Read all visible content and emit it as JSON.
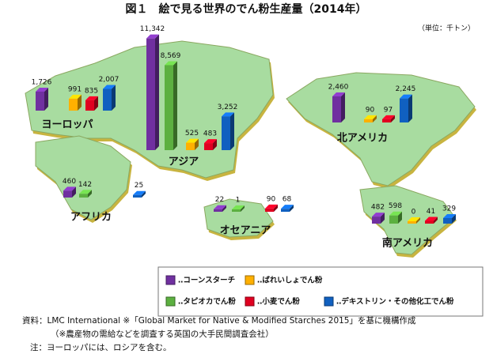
{
  "chart_data": {
    "type": "map-bar",
    "title": "図１　絵で見る世界のでん粉生産量（2014年）",
    "unit": "（単位：千トン）",
    "categories": [
      "ヨーロッパ",
      "アジア",
      "北アメリカ",
      "アフリカ",
      "オセアニア",
      "南アメリカ"
    ],
    "series": [
      {
        "name": "‥コーンスターチ",
        "color": "#7030a0",
        "values": [
          1726,
          11342,
          2460,
          460,
          22,
          482
        ],
        "value_labels": [
          "1,726",
          "11,342",
          "2,460",
          "460",
          "22",
          "482"
        ]
      },
      {
        "name": "‥ばれいしょでん粉",
        "color": "#ffb000",
        "values": [
          991,
          525,
          90,
          null,
          null,
          0
        ]
      },
      {
        "name": "‥タピオカでん粉",
        "color": "#5cb040",
        "values": [
          null,
          8569,
          null,
          142,
          1,
          598
        ],
        "value_labels": [
          null,
          "8,569",
          null,
          "142",
          "1",
          "598"
        ]
      },
      {
        "name": "‥小麦でん粉",
        "color": "#e00020",
        "values": [
          835,
          483,
          97,
          null,
          90,
          41
        ]
      },
      {
        "name": "‥デキストリン・その他化工でん粉",
        "color": "#1060c0",
        "values": [
          2007,
          3252,
          2245,
          25,
          68,
          329
        ],
        "value_labels": [
          "2,007",
          "3,252",
          "2,245",
          "25",
          "68",
          "329"
        ]
      }
    ],
    "notes": [
      "資料：LMC International ※「Global Market for Native & Modified Starches 2015」を基に機構作成",
      "（※農産物の需給などを調査する英国の大手民間調査会社）",
      "注：ヨーロッパには、ロシアを含む。"
    ]
  }
}
